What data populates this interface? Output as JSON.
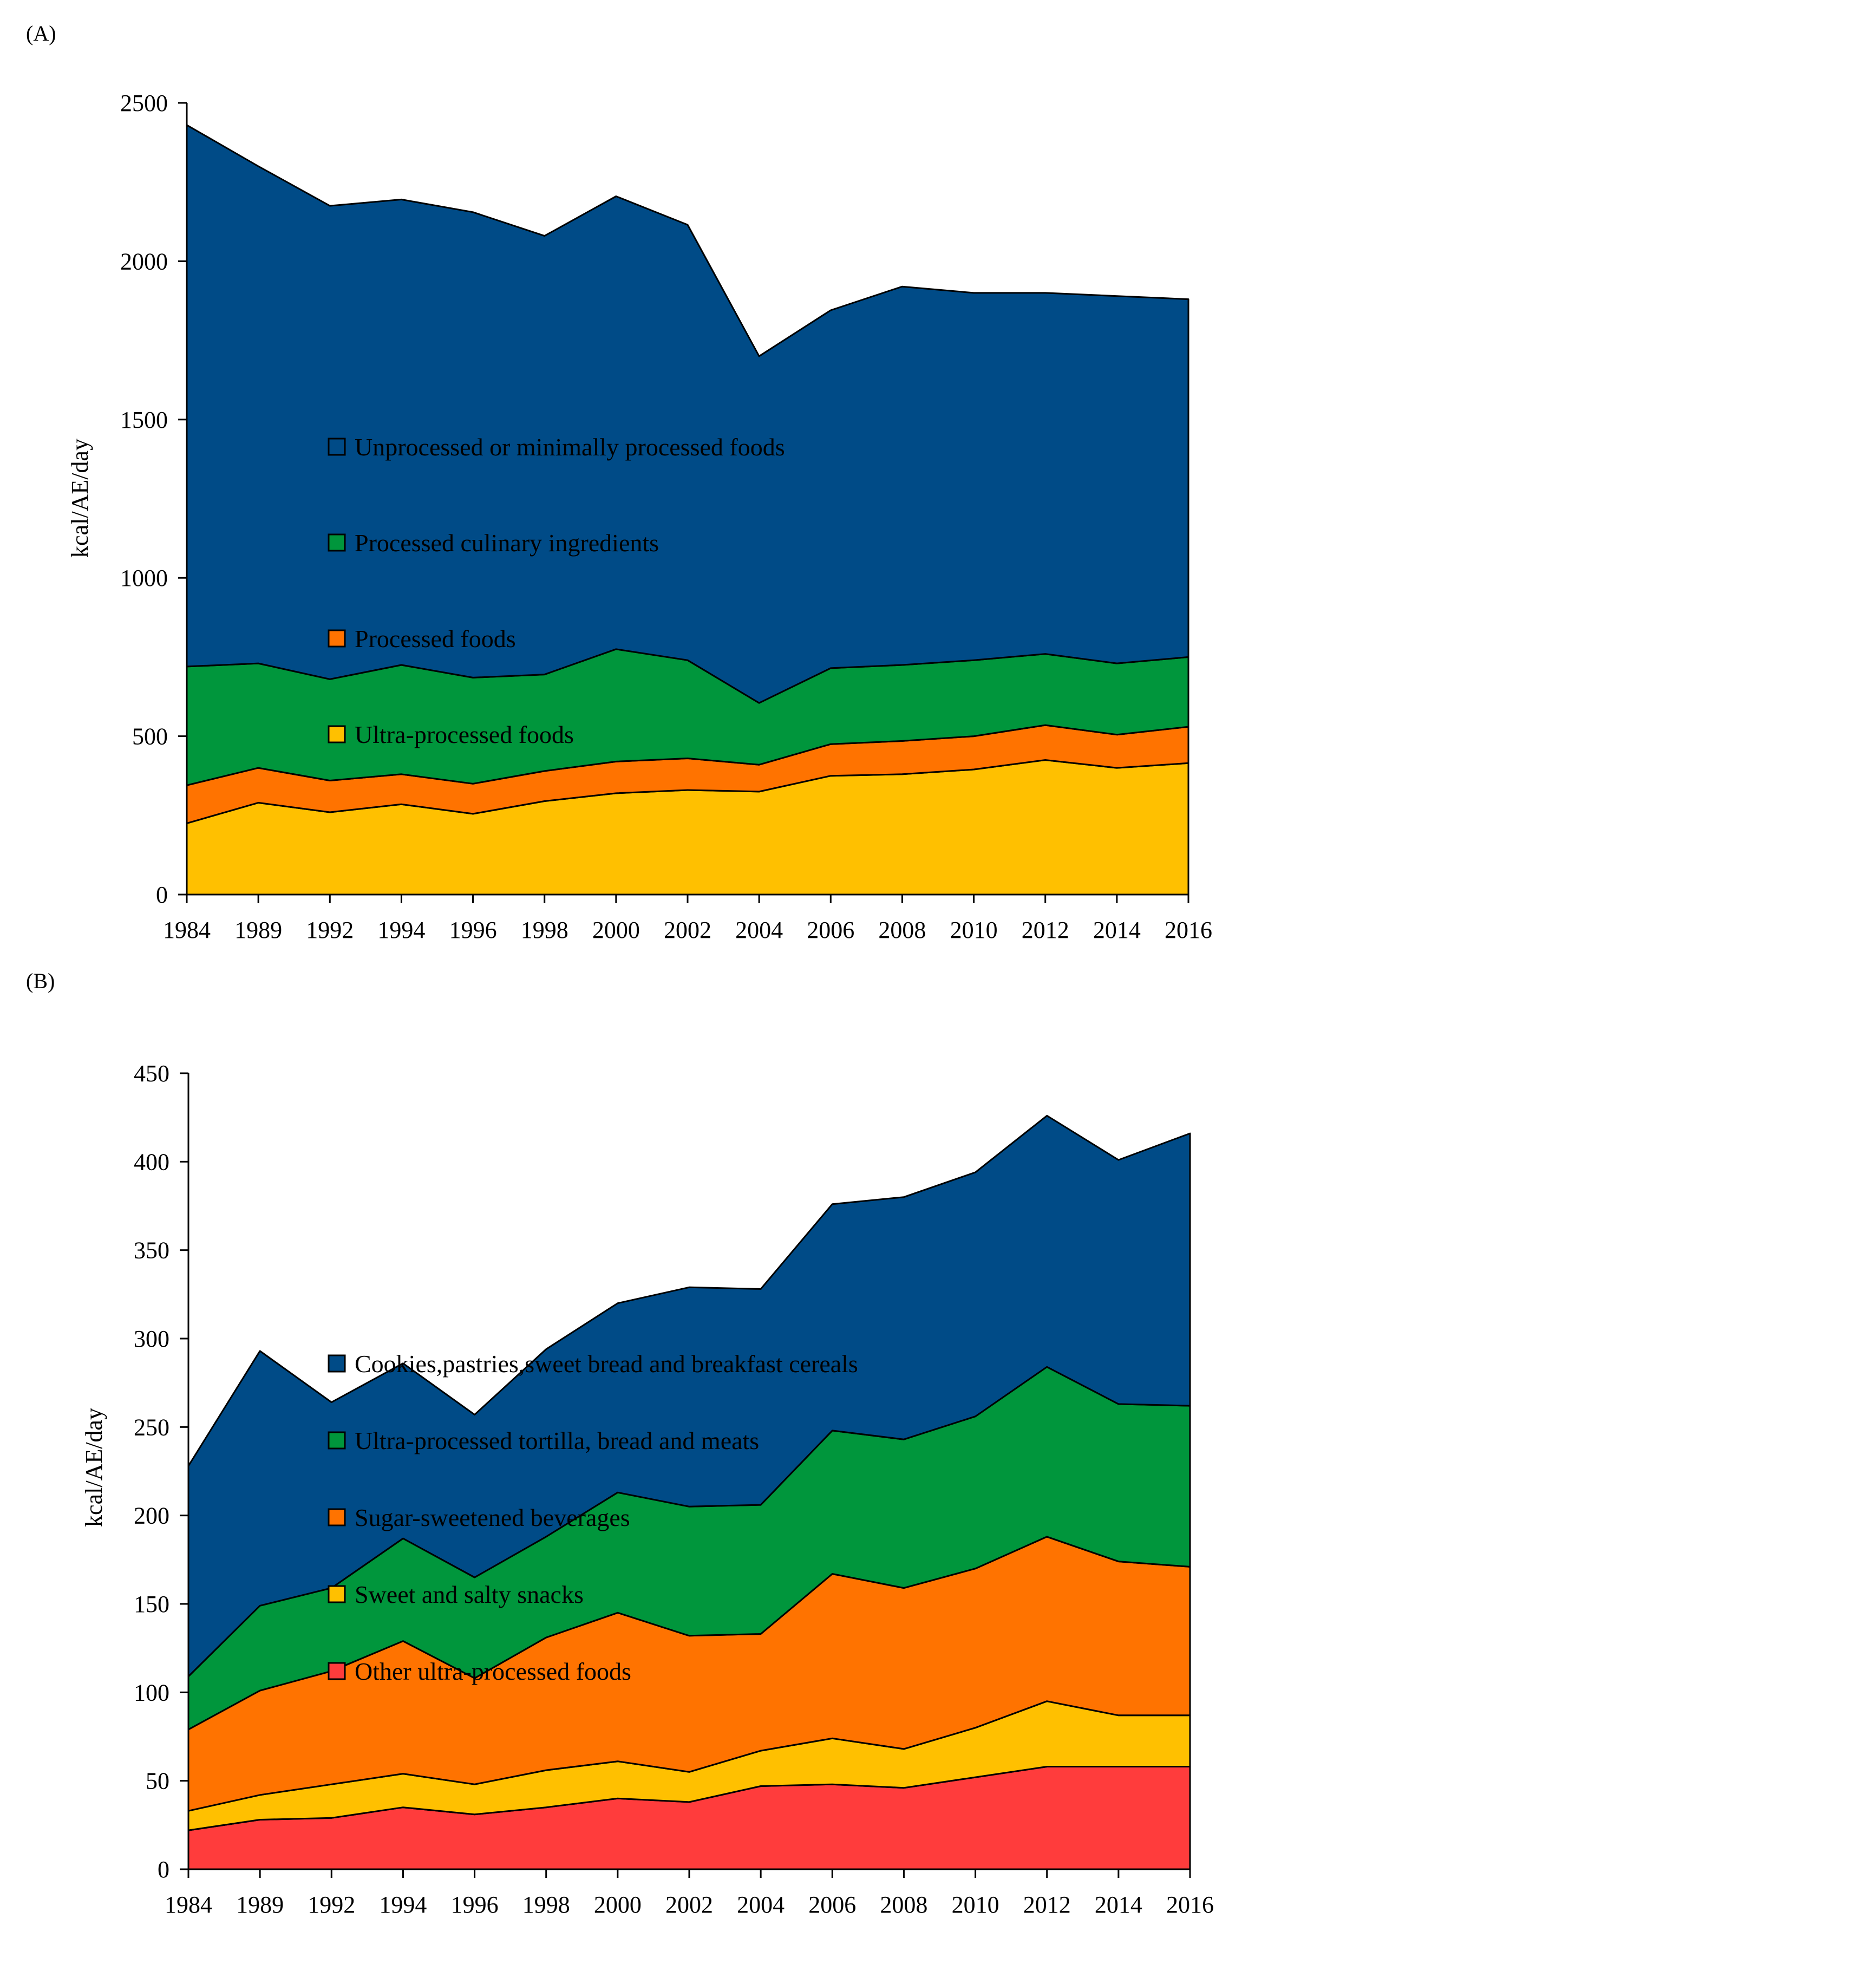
{
  "chart_data": [
    {
      "type": "area",
      "stacked": true,
      "panel_label": "(A)",
      "title": "",
      "xlabel": "",
      "ylabel": "kcal/AE/day",
      "ylim": [
        0,
        2500
      ],
      "yticks": [
        0,
        500,
        1000,
        1500,
        2000,
        2500
      ],
      "categories": [
        "1984",
        "1989",
        "1992",
        "1994",
        "1996",
        "1998",
        "2000",
        "2002",
        "2004",
        "2006",
        "2008",
        "2010",
        "2012",
        "2014",
        "2016"
      ],
      "legend_position": "right",
      "series": [
        {
          "name": "Ultra-processed foods",
          "color": "#FFC000",
          "values": [
            225,
            290,
            260,
            285,
            255,
            295,
            320,
            330,
            325,
            375,
            380,
            395,
            425,
            400,
            415
          ]
        },
        {
          "name": "Processed foods",
          "color": "#FF7300",
          "values": [
            120,
            110,
            100,
            95,
            95,
            95,
            100,
            100,
            85,
            100,
            105,
            105,
            110,
            105,
            115
          ]
        },
        {
          "name": "Processed culinary ingredients",
          "color": "#00963C",
          "values": [
            375,
            330,
            320,
            345,
            335,
            305,
            355,
            310,
            195,
            240,
            240,
            240,
            225,
            225,
            220
          ]
        },
        {
          "name": "Unprocessed or minimally processed foods",
          "color": "#004B87",
          "values": [
            1710,
            1570,
            1495,
            1470,
            1470,
            1385,
            1430,
            1375,
            1095,
            1130,
            1195,
            1160,
            1140,
            1160,
            1130
          ]
        }
      ]
    },
    {
      "type": "area",
      "stacked": true,
      "panel_label": "(B)",
      "title": "",
      "xlabel": "",
      "ylabel": "kcal/AE/day",
      "ylim": [
        0,
        450
      ],
      "yticks": [
        0,
        50,
        100,
        150,
        200,
        250,
        300,
        350,
        400,
        450
      ],
      "categories": [
        "1984",
        "1989",
        "1992",
        "1994",
        "1996",
        "1998",
        "2000",
        "2002",
        "2004",
        "2006",
        "2008",
        "2010",
        "2012",
        "2014",
        "2016"
      ],
      "legend_position": "right",
      "series": [
        {
          "name": "Other ultra-processed foods",
          "color": "#FF3C3C",
          "values": [
            22,
            28,
            29,
            35,
            31,
            35,
            40,
            38,
            47,
            48,
            46,
            52,
            58,
            58,
            58
          ]
        },
        {
          "name": "Sweet and salty snacks",
          "color": "#FFC000",
          "values": [
            11,
            14,
            19,
            19,
            17,
            21,
            21,
            17,
            20,
            26,
            22,
            28,
            37,
            29,
            29
          ]
        },
        {
          "name": "Sugar-sweetened beverages",
          "color": "#FF7300",
          "values": [
            46,
            59,
            64,
            75,
            60,
            75,
            84,
            77,
            66,
            93,
            91,
            90,
            93,
            87,
            84
          ]
        },
        {
          "name": "Ultra-processed tortilla, bread and meats",
          "color": "#00963C",
          "values": [
            30,
            48,
            47,
            58,
            57,
            57,
            68,
            73,
            73,
            81,
            84,
            86,
            96,
            89,
            91
          ]
        },
        {
          "name": "Cookies,pastries,sweet bread and breakfast cereals",
          "color": "#004B87",
          "values": [
            119,
            144,
            105,
            99,
            92,
            106,
            107,
            124,
            122,
            128,
            137,
            138,
            142,
            138,
            154
          ]
        }
      ]
    }
  ]
}
